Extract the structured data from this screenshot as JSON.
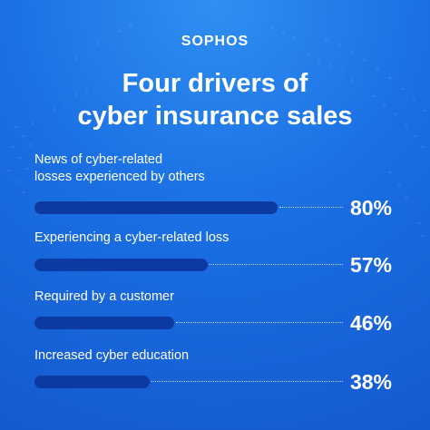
{
  "brand": {
    "logo_text": "SOPHOS"
  },
  "title": {
    "line1": "Four drivers of",
    "line2": "cyber insurance sales"
  },
  "colors": {
    "background": "#1a6fe3",
    "bar": "#0c3aa0",
    "text": "#ffffff"
  },
  "chart_data": {
    "type": "bar",
    "orientation": "horizontal",
    "title": "Four drivers of cyber insurance sales",
    "categories": [
      "News of cyber-related losses experienced by others",
      "Experiencing a cyber-related loss",
      "Required by a customer",
      "Increased cyber education"
    ],
    "values": [
      80,
      57,
      46,
      38
    ],
    "value_labels": [
      "80%",
      "57%",
      "46%",
      "38%"
    ],
    "unit": "%",
    "xlim": [
      0,
      100
    ],
    "grid": false,
    "legend": "none"
  },
  "rows": [
    {
      "label_line1": "News of cyber-related",
      "label_line2": "losses experienced by others",
      "value_label": "80%"
    },
    {
      "label_line1": "Experiencing a cyber-related loss",
      "label_line2": "",
      "value_label": "57%"
    },
    {
      "label_line1": "Required by a customer",
      "label_line2": "",
      "value_label": "46%"
    },
    {
      "label_line1": "Increased cyber education",
      "label_line2": "",
      "value_label": "38%"
    }
  ]
}
